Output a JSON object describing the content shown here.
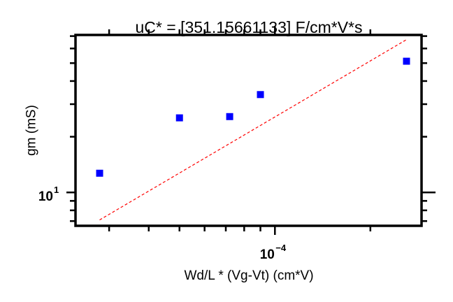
{
  "chart_data": {
    "type": "scatter",
    "title": "uC* = [351.15661133] F/cm*V*s",
    "xlabel": "Wd/L * (Vg-Vt) (cm*V)",
    "ylabel": "gm (mS)",
    "xscale": "log",
    "yscale": "log",
    "xlim": [
      2.35e-05,
      0.00029
    ],
    "ylim": [
      6.6,
      71
    ],
    "x_tick_labels": [
      {
        "value": 0.0001,
        "base": "10",
        "exponent": "−4"
      }
    ],
    "y_tick_labels": [
      {
        "value": 10,
        "base": "10",
        "exponent": "1"
      }
    ],
    "grid": false,
    "legend": false,
    "series": [
      {
        "type": "scatter",
        "marker": "square",
        "color": "#0000ff",
        "x": [
          2.8e-05,
          5e-05,
          7.2e-05,
          9e-05,
          0.00026
        ],
        "y": [
          12.7,
          25.3,
          25.7,
          33.8,
          51.2
        ]
      },
      {
        "type": "line",
        "style": "dashed",
        "color": "#ff0000",
        "x": [
          2.8e-05,
          0.00026
        ],
        "y": [
          7.1,
          67.0
        ]
      }
    ]
  }
}
